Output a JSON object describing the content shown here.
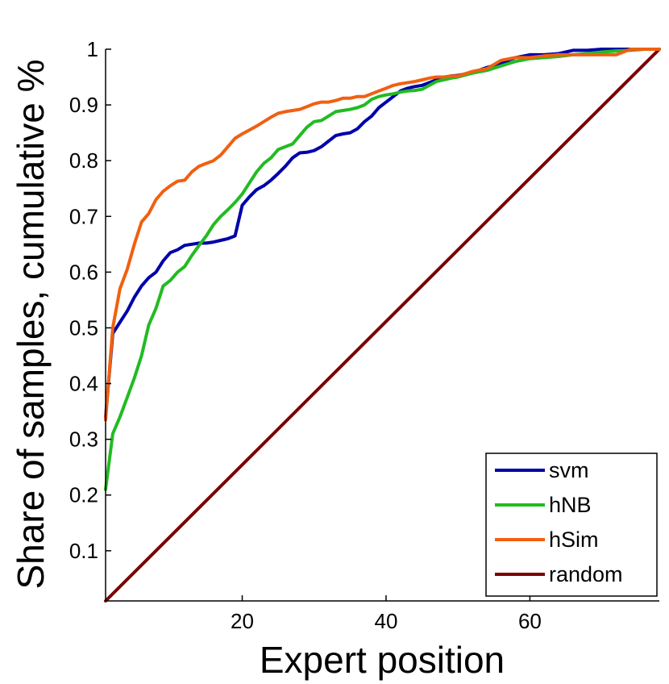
{
  "chart_data": {
    "type": "line",
    "title": "",
    "xlabel": "Expert position",
    "ylabel": "Share of samples, cumulative %",
    "xlim": [
      1,
      78
    ],
    "ylim": [
      0.01,
      1
    ],
    "xticks": [
      20,
      40,
      60
    ],
    "yticks": [
      0.1,
      0.2,
      0.3,
      0.4,
      0.5,
      0.6,
      0.7,
      0.8,
      0.9,
      1
    ],
    "ytick_labels": [
      "0.1",
      "0.2",
      "0.3",
      "0.4",
      "0.5",
      "0.6",
      "0.7",
      "0.8",
      "0.9",
      "1"
    ],
    "grid": false,
    "legend_position": "bottom-right",
    "series": [
      {
        "name": "svm",
        "color": "#0000aa",
        "x": [
          1,
          2,
          3,
          4,
          5,
          6,
          7,
          8,
          9,
          10,
          11,
          12,
          13,
          14,
          15,
          16,
          17,
          18,
          19,
          20,
          21,
          22,
          23,
          24,
          25,
          26,
          27,
          28,
          29,
          30,
          31,
          32,
          33,
          34,
          35,
          36,
          37,
          38,
          39,
          40,
          41,
          42,
          43,
          44,
          45,
          46,
          47,
          48,
          49,
          50,
          52,
          54,
          56,
          58,
          60,
          62,
          64,
          66,
          68,
          70,
          72,
          74,
          76,
          78
        ],
        "values": [
          0.34,
          0.49,
          0.51,
          0.53,
          0.555,
          0.575,
          0.59,
          0.6,
          0.62,
          0.635,
          0.64,
          0.648,
          0.65,
          0.652,
          0.652,
          0.654,
          0.657,
          0.66,
          0.665,
          0.72,
          0.735,
          0.748,
          0.755,
          0.765,
          0.777,
          0.79,
          0.805,
          0.814,
          0.815,
          0.818,
          0.825,
          0.835,
          0.845,
          0.848,
          0.85,
          0.857,
          0.87,
          0.88,
          0.895,
          0.905,
          0.915,
          0.925,
          0.93,
          0.933,
          0.935,
          0.94,
          0.945,
          0.948,
          0.952,
          0.953,
          0.958,
          0.967,
          0.975,
          0.985,
          0.99,
          0.99,
          0.992,
          0.998,
          0.998,
          1,
          1,
          1,
          1,
          1
        ]
      },
      {
        "name": "hNB",
        "color": "#22bb22",
        "x": [
          1,
          2,
          3,
          4,
          5,
          6,
          7,
          8,
          9,
          10,
          11,
          12,
          13,
          14,
          15,
          16,
          17,
          18,
          19,
          20,
          21,
          22,
          23,
          24,
          25,
          26,
          27,
          28,
          29,
          30,
          31,
          32,
          33,
          34,
          35,
          36,
          37,
          38,
          39,
          40,
          41,
          42,
          43,
          44,
          45,
          46,
          47,
          48,
          49,
          50,
          52,
          54,
          56,
          58,
          60,
          62,
          64,
          66,
          68,
          70,
          72,
          74,
          76,
          78
        ],
        "values": [
          0.21,
          0.31,
          0.34,
          0.375,
          0.41,
          0.45,
          0.505,
          0.535,
          0.575,
          0.585,
          0.6,
          0.61,
          0.63,
          0.648,
          0.665,
          0.685,
          0.7,
          0.712,
          0.725,
          0.74,
          0.76,
          0.78,
          0.795,
          0.805,
          0.82,
          0.825,
          0.83,
          0.845,
          0.86,
          0.87,
          0.872,
          0.88,
          0.888,
          0.89,
          0.892,
          0.895,
          0.9,
          0.91,
          0.915,
          0.918,
          0.92,
          0.923,
          0.925,
          0.926,
          0.928,
          0.935,
          0.942,
          0.945,
          0.948,
          0.95,
          0.957,
          0.962,
          0.97,
          0.978,
          0.983,
          0.985,
          0.987,
          0.99,
          0.992,
          0.995,
          0.997,
          0.998,
          1,
          1
        ]
      },
      {
        "name": "hSim",
        "color": "#f06010",
        "x": [
          1,
          2,
          3,
          4,
          5,
          6,
          7,
          8,
          9,
          10,
          11,
          12,
          13,
          14,
          15,
          16,
          17,
          18,
          19,
          20,
          21,
          22,
          23,
          24,
          25,
          26,
          27,
          28,
          29,
          30,
          31,
          32,
          33,
          34,
          35,
          36,
          37,
          38,
          39,
          40,
          41,
          42,
          43,
          44,
          45,
          46,
          47,
          48,
          49,
          50,
          52,
          54,
          56,
          58,
          60,
          62,
          64,
          66,
          68,
          70,
          72,
          74,
          76,
          78
        ],
        "values": [
          0.335,
          0.5,
          0.57,
          0.605,
          0.65,
          0.69,
          0.705,
          0.73,
          0.745,
          0.755,
          0.763,
          0.765,
          0.78,
          0.79,
          0.795,
          0.8,
          0.81,
          0.825,
          0.84,
          0.848,
          0.855,
          0.862,
          0.87,
          0.878,
          0.885,
          0.888,
          0.89,
          0.892,
          0.897,
          0.902,
          0.905,
          0.905,
          0.908,
          0.912,
          0.912,
          0.915,
          0.915,
          0.92,
          0.925,
          0.93,
          0.935,
          0.938,
          0.94,
          0.942,
          0.945,
          0.948,
          0.95,
          0.95,
          0.952,
          0.952,
          0.96,
          0.965,
          0.98,
          0.985,
          0.985,
          0.988,
          0.99,
          0.99,
          0.99,
          0.99,
          0.99,
          1,
          1,
          1
        ]
      },
      {
        "name": "random",
        "color": "#7a0000",
        "x": [
          1,
          78
        ],
        "values": [
          0.01,
          1
        ]
      }
    ]
  }
}
